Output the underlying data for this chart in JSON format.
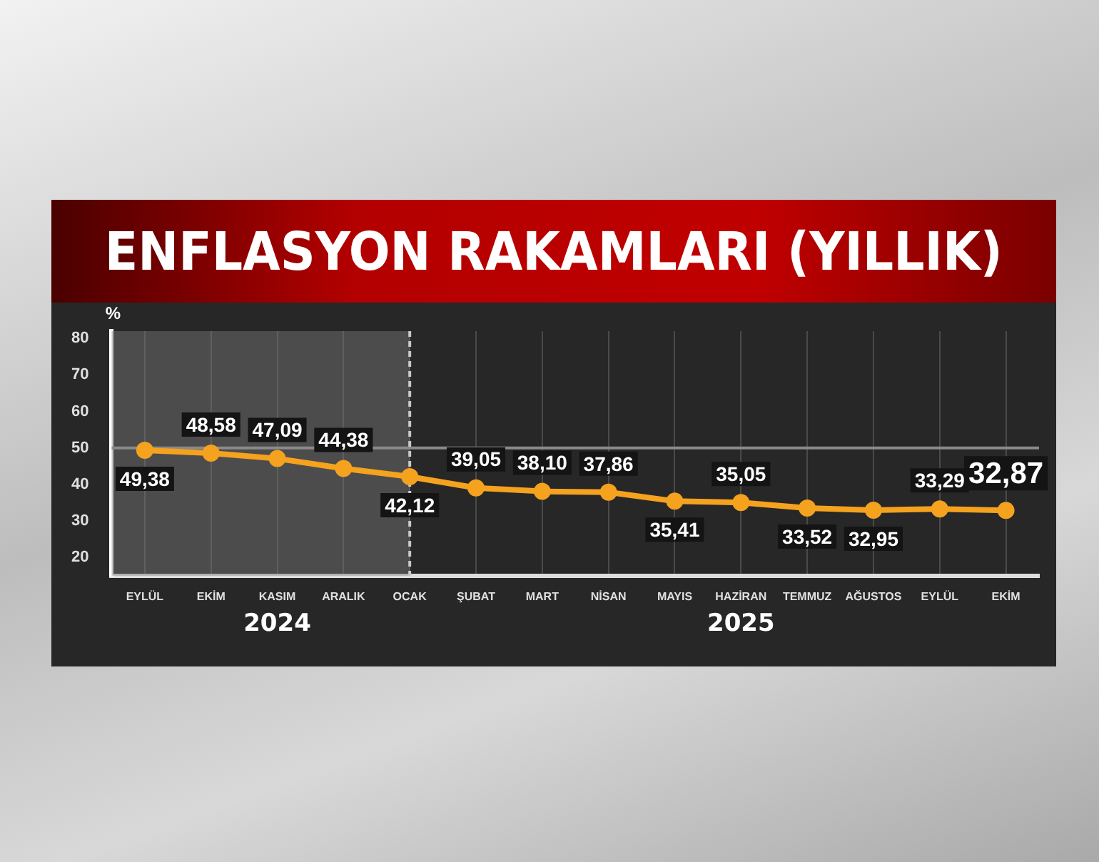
{
  "chart_data": {
    "type": "line",
    "title": "ENFLASYON RAKAMLARI (YILLIK)",
    "ylabel": "%",
    "categories": [
      "EYLÜL",
      "EKİM",
      "KASIM",
      "ARALIK",
      "OCAK",
      "ŞUBAT",
      "MART",
      "NİSAN",
      "MAYIS",
      "HAZİRAN",
      "TEMMUZ",
      "AĞUSTOS",
      "EYLÜL",
      "EKİM"
    ],
    "series": [
      {
        "color": "#f5a21e",
        "values": [
          49.38,
          48.58,
          47.09,
          44.38,
          42.12,
          39.05,
          38.1,
          37.86,
          35.41,
          35.05,
          33.52,
          32.95,
          33.29,
          32.87
        ],
        "value_labels": [
          "49,38",
          "48,58",
          "47,09",
          "44,38",
          "42,12",
          "39,05",
          "38,10",
          "37,86",
          "35,41",
          "35,05",
          "33,52",
          "32,95",
          "33,29",
          "32,87"
        ]
      }
    ],
    "ylim": [
      15,
      82
    ],
    "yticks": [
      20,
      30,
      40,
      50,
      60,
      70,
      80
    ],
    "grid": "x",
    "marker": "circle",
    "legend": false,
    "ref_lines": [
      {
        "axis": "y",
        "value": 50,
        "color": "#8a8a8a",
        "line_style": "solid"
      },
      {
        "axis": "x",
        "value": "OCAK",
        "color": "#c8c8c8",
        "line_style": "dashed"
      }
    ],
    "bands": [
      {
        "axis": "x",
        "from": "EYLÜL",
        "to": "OCAK",
        "color": "#7a7a7a"
      }
    ],
    "annotations": [
      "2024",
      "2025"
    ]
  }
}
